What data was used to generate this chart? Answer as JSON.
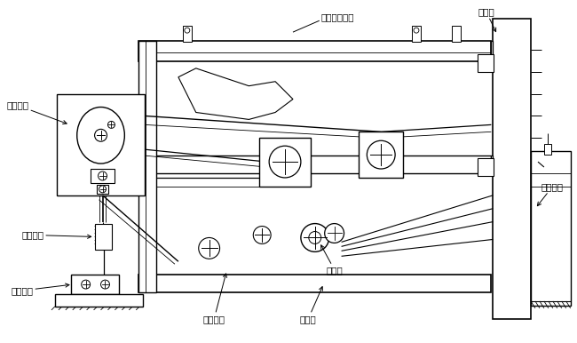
{
  "bg_color": "#ffffff",
  "line_color": "#000000",
  "labels": {
    "pian_xin": "偏心装置",
    "gu_ding_jia": "固定架",
    "tiao_zheng": "调整装置",
    "huan_chong": "缓冲装置",
    "gu_ding_zhuang": "固定装置",
    "zhen_dong_jia_shang": "振动架上平面",
    "bai_bi": "摆臂装置",
    "zhen_dong_jia": "振动架",
    "dao_xiang_lun": "导向轮"
  },
  "fig_width": 6.5,
  "fig_height": 3.86,
  "dpi": 100
}
